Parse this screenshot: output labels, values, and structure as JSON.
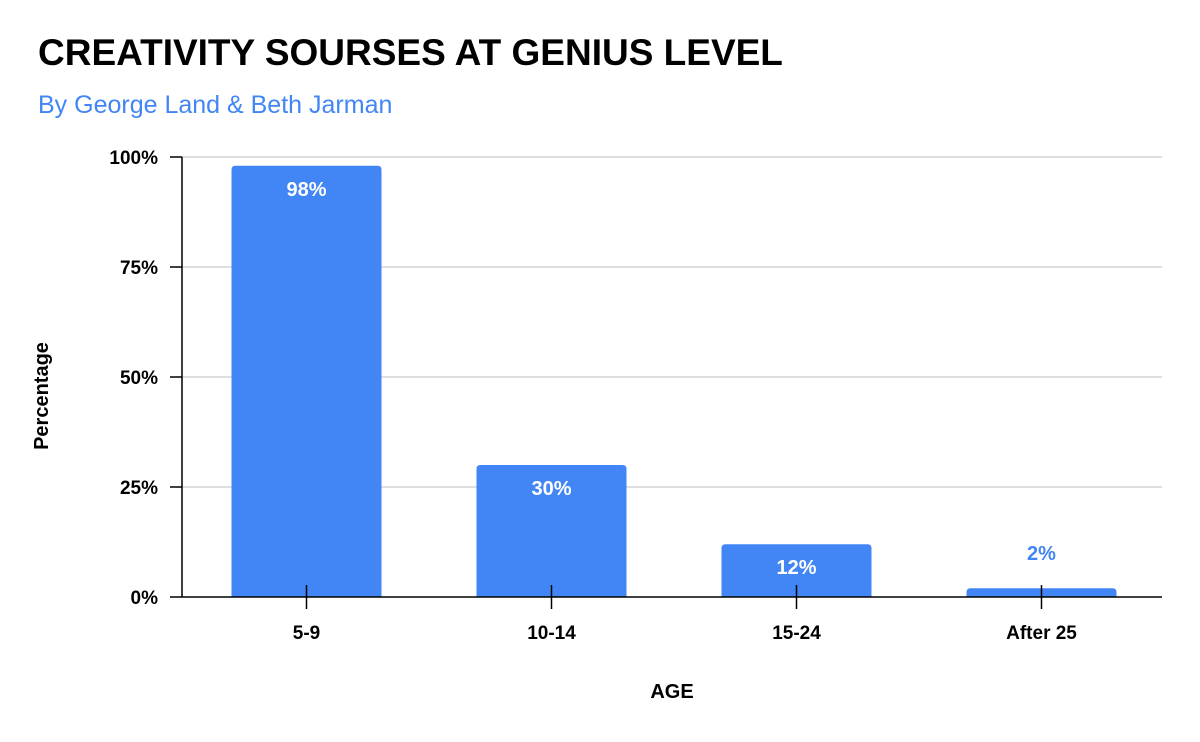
{
  "chart_data": {
    "type": "bar",
    "title": "CREATIVITY SOURSES AT GENIUS LEVEL",
    "subtitle": "By George Land & Beth Jarman",
    "categories": [
      "5-9",
      "10-14",
      "15-24",
      "After 25"
    ],
    "values": [
      0.98,
      0.3,
      0.12,
      0.02
    ],
    "data_labels": [
      "98%",
      "30%",
      "12%",
      "2%"
    ],
    "xlabel": "AGE",
    "ylabel": "Percentage",
    "ylim": [
      0,
      1
    ],
    "yticks": [
      0,
      0.25,
      0.5,
      0.75,
      1
    ],
    "ytick_labels": [
      "0%",
      "25%",
      "50%",
      "75%",
      "100%"
    ],
    "grid": true,
    "legend": "none",
    "colors": {
      "bar": "#4285f4",
      "label_inside": "#ffffff",
      "label_outside": "#4285f4",
      "subtitle": "#4285f4",
      "gridline": "#cccccc",
      "axis": "#000000"
    }
  }
}
